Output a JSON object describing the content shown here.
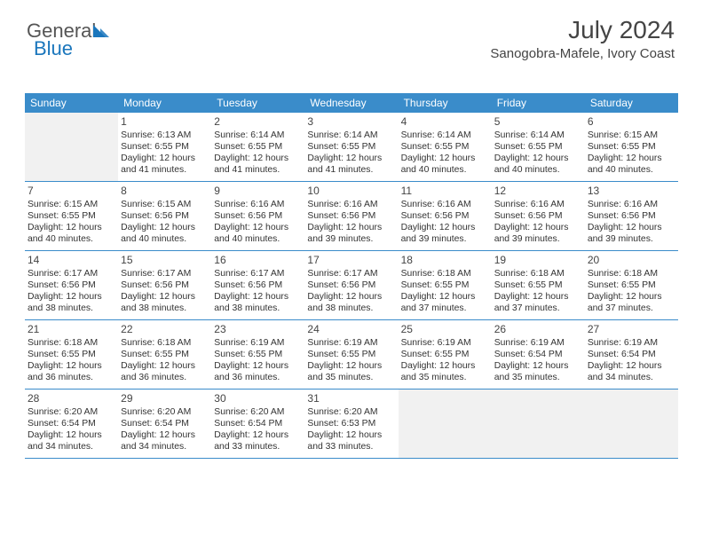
{
  "brand": {
    "name1": "General",
    "name2": "Blue"
  },
  "header": {
    "title": "July 2024",
    "location": "Sanogobra-Mafele, Ivory Coast"
  },
  "colors": {
    "header_bar": "#3a8cca",
    "header_text": "#ffffff",
    "border": "#3a8cca",
    "empty_bg": "#f1f1f1",
    "text": "#333333",
    "title_text": "#444444",
    "brand_blue": "#1a76bc",
    "brand_gray": "#555555"
  },
  "weekdays": [
    "Sunday",
    "Monday",
    "Tuesday",
    "Wednesday",
    "Thursday",
    "Friday",
    "Saturday"
  ],
  "cells": [
    {
      "empty": true
    },
    {
      "day": "1",
      "sunrise": "6:13 AM",
      "sunset": "6:55 PM",
      "daylight_hours": "12",
      "daylight_minutes": "41"
    },
    {
      "day": "2",
      "sunrise": "6:14 AM",
      "sunset": "6:55 PM",
      "daylight_hours": "12",
      "daylight_minutes": "41"
    },
    {
      "day": "3",
      "sunrise": "6:14 AM",
      "sunset": "6:55 PM",
      "daylight_hours": "12",
      "daylight_minutes": "41"
    },
    {
      "day": "4",
      "sunrise": "6:14 AM",
      "sunset": "6:55 PM",
      "daylight_hours": "12",
      "daylight_minutes": "40"
    },
    {
      "day": "5",
      "sunrise": "6:14 AM",
      "sunset": "6:55 PM",
      "daylight_hours": "12",
      "daylight_minutes": "40"
    },
    {
      "day": "6",
      "sunrise": "6:15 AM",
      "sunset": "6:55 PM",
      "daylight_hours": "12",
      "daylight_minutes": "40"
    },
    {
      "day": "7",
      "sunrise": "6:15 AM",
      "sunset": "6:55 PM",
      "daylight_hours": "12",
      "daylight_minutes": "40"
    },
    {
      "day": "8",
      "sunrise": "6:15 AM",
      "sunset": "6:56 PM",
      "daylight_hours": "12",
      "daylight_minutes": "40"
    },
    {
      "day": "9",
      "sunrise": "6:16 AM",
      "sunset": "6:56 PM",
      "daylight_hours": "12",
      "daylight_minutes": "40"
    },
    {
      "day": "10",
      "sunrise": "6:16 AM",
      "sunset": "6:56 PM",
      "daylight_hours": "12",
      "daylight_minutes": "39"
    },
    {
      "day": "11",
      "sunrise": "6:16 AM",
      "sunset": "6:56 PM",
      "daylight_hours": "12",
      "daylight_minutes": "39"
    },
    {
      "day": "12",
      "sunrise": "6:16 AM",
      "sunset": "6:56 PM",
      "daylight_hours": "12",
      "daylight_minutes": "39"
    },
    {
      "day": "13",
      "sunrise": "6:16 AM",
      "sunset": "6:56 PM",
      "daylight_hours": "12",
      "daylight_minutes": "39"
    },
    {
      "day": "14",
      "sunrise": "6:17 AM",
      "sunset": "6:56 PM",
      "daylight_hours": "12",
      "daylight_minutes": "38"
    },
    {
      "day": "15",
      "sunrise": "6:17 AM",
      "sunset": "6:56 PM",
      "daylight_hours": "12",
      "daylight_minutes": "38"
    },
    {
      "day": "16",
      "sunrise": "6:17 AM",
      "sunset": "6:56 PM",
      "daylight_hours": "12",
      "daylight_minutes": "38"
    },
    {
      "day": "17",
      "sunrise": "6:17 AM",
      "sunset": "6:56 PM",
      "daylight_hours": "12",
      "daylight_minutes": "38"
    },
    {
      "day": "18",
      "sunrise": "6:18 AM",
      "sunset": "6:55 PM",
      "daylight_hours": "12",
      "daylight_minutes": "37"
    },
    {
      "day": "19",
      "sunrise": "6:18 AM",
      "sunset": "6:55 PM",
      "daylight_hours": "12",
      "daylight_minutes": "37"
    },
    {
      "day": "20",
      "sunrise": "6:18 AM",
      "sunset": "6:55 PM",
      "daylight_hours": "12",
      "daylight_minutes": "37"
    },
    {
      "day": "21",
      "sunrise": "6:18 AM",
      "sunset": "6:55 PM",
      "daylight_hours": "12",
      "daylight_minutes": "36"
    },
    {
      "day": "22",
      "sunrise": "6:18 AM",
      "sunset": "6:55 PM",
      "daylight_hours": "12",
      "daylight_minutes": "36"
    },
    {
      "day": "23",
      "sunrise": "6:19 AM",
      "sunset": "6:55 PM",
      "daylight_hours": "12",
      "daylight_minutes": "36"
    },
    {
      "day": "24",
      "sunrise": "6:19 AM",
      "sunset": "6:55 PM",
      "daylight_hours": "12",
      "daylight_minutes": "35"
    },
    {
      "day": "25",
      "sunrise": "6:19 AM",
      "sunset": "6:55 PM",
      "daylight_hours": "12",
      "daylight_minutes": "35"
    },
    {
      "day": "26",
      "sunrise": "6:19 AM",
      "sunset": "6:54 PM",
      "daylight_hours": "12",
      "daylight_minutes": "35"
    },
    {
      "day": "27",
      "sunrise": "6:19 AM",
      "sunset": "6:54 PM",
      "daylight_hours": "12",
      "daylight_minutes": "34"
    },
    {
      "day": "28",
      "sunrise": "6:20 AM",
      "sunset": "6:54 PM",
      "daylight_hours": "12",
      "daylight_minutes": "34"
    },
    {
      "day": "29",
      "sunrise": "6:20 AM",
      "sunset": "6:54 PM",
      "daylight_hours": "12",
      "daylight_minutes": "34"
    },
    {
      "day": "30",
      "sunrise": "6:20 AM",
      "sunset": "6:54 PM",
      "daylight_hours": "12",
      "daylight_minutes": "33"
    },
    {
      "day": "31",
      "sunrise": "6:20 AM",
      "sunset": "6:53 PM",
      "daylight_hours": "12",
      "daylight_minutes": "33"
    },
    {
      "empty": true
    },
    {
      "empty": true
    },
    {
      "empty": true
    }
  ],
  "labels": {
    "sunrise_prefix": "Sunrise: ",
    "sunset_prefix": "Sunset: ",
    "daylight_prefix": "Daylight: ",
    "hours_word": " hours",
    "and_word": "and ",
    "minutes_word": " minutes."
  }
}
